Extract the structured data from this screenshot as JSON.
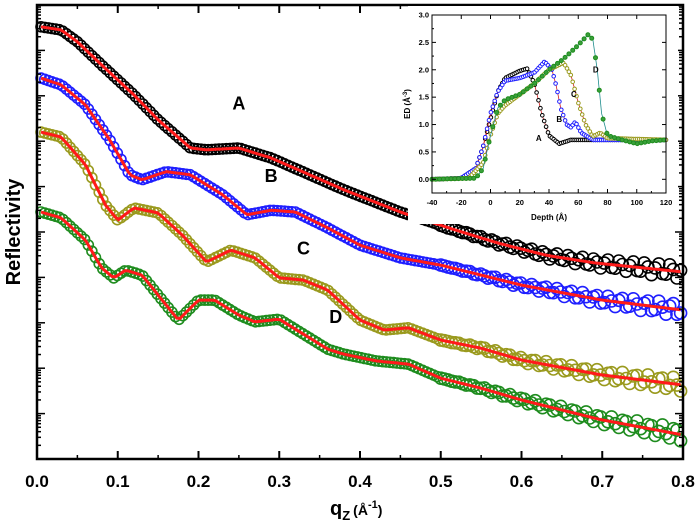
{
  "chart_data": [
    {
      "type": "scatter",
      "xlabel": "q",
      "xlabel_sub": "Z",
      "xlabel_unit": "(Å",
      "xlabel_unit_sup": "-1",
      "xlabel_unit_close": ")",
      "ylabel": "Reflectivity",
      "xlim": [
        0.0,
        0.8
      ],
      "ylim": [
        0,
        10
      ],
      "y_scale": "log (unlabeled, curves offset)",
      "x_ticks": [
        "0.0",
        "0.1",
        "0.2",
        "0.3",
        "0.4",
        "0.5",
        "0.6",
        "0.7",
        "0.8"
      ],
      "fit_color": "#ff1a1a",
      "series": [
        {
          "name": "A",
          "color": "#000000",
          "x": [
            0.005,
            0.03,
            0.05,
            0.08,
            0.12,
            0.15,
            0.19,
            0.21,
            0.25,
            0.29,
            0.33,
            0.38,
            0.45,
            0.51,
            0.57,
            0.63,
            0.69,
            0.8
          ],
          "y": [
            9.52,
            9.45,
            9.19,
            8.68,
            8.02,
            7.47,
            6.85,
            6.81,
            6.85,
            6.63,
            6.32,
            5.93,
            5.44,
            5.09,
            4.76,
            4.49,
            4.32,
            4.12
          ]
        },
        {
          "name": "B",
          "color": "#1f1fff",
          "x": [
            0.005,
            0.03,
            0.06,
            0.09,
            0.115,
            0.13,
            0.16,
            0.19,
            0.23,
            0.26,
            0.29,
            0.32,
            0.36,
            0.4,
            0.45,
            0.5,
            0.55,
            0.6,
            0.7,
            0.8
          ],
          "y": [
            8.39,
            8.24,
            7.8,
            7.03,
            6.26,
            6.15,
            6.33,
            6.26,
            5.82,
            5.38,
            5.48,
            5.44,
            5.09,
            4.71,
            4.43,
            4.27,
            4.05,
            3.83,
            3.5,
            3.28
          ]
        },
        {
          "name": "C",
          "color": "#9a9a1e",
          "x": [
            0.005,
            0.03,
            0.06,
            0.085,
            0.1,
            0.12,
            0.15,
            0.18,
            0.21,
            0.24,
            0.27,
            0.3,
            0.33,
            0.36,
            0.4,
            0.43,
            0.46,
            0.5,
            0.55,
            0.6,
            0.7,
            0.8
          ],
          "y": [
            7.2,
            7.09,
            6.48,
            5.59,
            5.26,
            5.53,
            5.42,
            4.93,
            4.34,
            4.6,
            4.43,
            3.99,
            3.94,
            3.72,
            3.06,
            2.84,
            2.89,
            2.62,
            2.44,
            2.18,
            1.85,
            1.63
          ]
        },
        {
          "name": "D",
          "color": "#1e8c1e",
          "x": [
            0.005,
            0.03,
            0.06,
            0.08,
            0.095,
            0.11,
            0.13,
            0.155,
            0.175,
            0.2,
            0.22,
            0.25,
            0.27,
            0.3,
            0.33,
            0.36,
            0.38,
            0.42,
            0.46,
            0.5,
            0.55,
            0.6,
            0.7,
            0.8
          ],
          "y": [
            5.44,
            5.31,
            4.82,
            4.21,
            3.99,
            4.16,
            4.05,
            3.5,
            3.06,
            3.5,
            3.5,
            3.17,
            3.02,
            3.08,
            2.75,
            2.42,
            2.31,
            2.16,
            2.09,
            1.78,
            1.56,
            1.3,
            0.86,
            0.53
          ]
        }
      ]
    },
    {
      "type": "line",
      "xlabel": "Depth (Å)",
      "ylabel": "ED (Å",
      "ylabel_sup": "-3",
      "ylabel_close": ")",
      "xlim": [
        -40,
        120
      ],
      "ylim": [
        -0.25,
        3.0
      ],
      "x_ticks": [
        "-40",
        "-20",
        "0",
        "20",
        "40",
        "60",
        "80",
        "100",
        "120"
      ],
      "y_ticks": [
        "0.0",
        "0.5",
        "1.0",
        "1.5",
        "2.0",
        "2.5",
        "3.0"
      ],
      "series": [
        {
          "name": "A",
          "color": "#000000",
          "x": [
            -40,
            -20,
            -10,
            -5,
            0,
            5,
            10,
            20,
            25,
            30,
            35,
            40,
            47,
            55,
            120
          ],
          "y": [
            0,
            0.02,
            0.2,
            0.6,
            1.1,
            1.6,
            1.85,
            1.98,
            2.02,
            1.75,
            1.2,
            0.8,
            0.65,
            0.72,
            0.72
          ]
        },
        {
          "name": "B",
          "color": "#1f1fff",
          "x": [
            -40,
            -20,
            -10,
            -5,
            0,
            5,
            10,
            20,
            30,
            37,
            42,
            45,
            48,
            52,
            55,
            58,
            62,
            70,
            120
          ],
          "y": [
            0,
            0.02,
            0.2,
            0.6,
            1.2,
            1.6,
            1.8,
            1.85,
            1.95,
            2.15,
            2.0,
            1.7,
            1.3,
            1.0,
            0.95,
            1.05,
            0.85,
            0.72,
            0.72
          ]
        },
        {
          "name": "C",
          "color": "#9a9a1e",
          "x": [
            -40,
            -15,
            -5,
            0,
            5,
            10,
            20,
            30,
            40,
            50,
            55,
            60,
            65,
            70,
            75,
            80,
            120
          ],
          "y": [
            0,
            0.02,
            0.3,
            0.8,
            1.2,
            1.35,
            1.55,
            1.75,
            2.0,
            2.13,
            1.9,
            1.4,
            1.0,
            0.78,
            0.85,
            0.75,
            0.72
          ]
        },
        {
          "name": "D",
          "color": "#1e8c1e",
          "x": [
            -40,
            -10,
            -5,
            0,
            5,
            10,
            20,
            30,
            40,
            50,
            60,
            67,
            70,
            73,
            76,
            80,
            90,
            100,
            110,
            120
          ],
          "y": [
            0,
            0.02,
            0.2,
            0.8,
            1.3,
            1.45,
            1.55,
            1.75,
            2.0,
            2.2,
            2.45,
            2.65,
            2.55,
            2.0,
            1.2,
            0.8,
            0.72,
            0.65,
            0.7,
            0.72
          ]
        }
      ]
    }
  ]
}
